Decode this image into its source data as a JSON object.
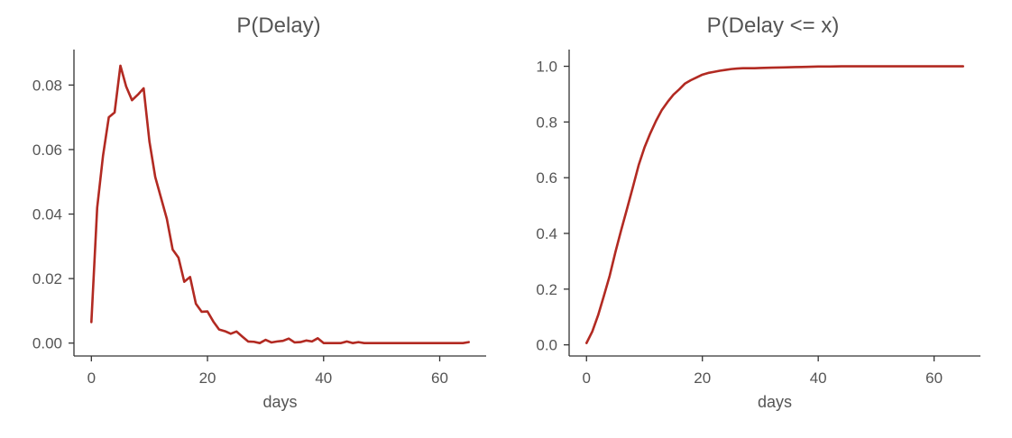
{
  "chart_data": [
    {
      "type": "line",
      "title": "P(Delay)",
      "xlabel": "days",
      "ylabel": "",
      "xlim": [
        -3,
        68
      ],
      "ylim": [
        -0.004,
        0.091
      ],
      "xticks": [
        0,
        20,
        40,
        60
      ],
      "xtick_labels": [
        "0",
        "20",
        "40",
        "60"
      ],
      "yticks": [
        0.0,
        0.02,
        0.04,
        0.06,
        0.08
      ],
      "ytick_labels": [
        "0.00",
        "0.02",
        "0.04",
        "0.06",
        "0.08"
      ],
      "grid": false,
      "color": "#b22a22",
      "x": [
        0,
        1,
        2,
        3,
        4,
        5,
        6,
        7,
        8,
        9,
        10,
        11,
        12,
        13,
        14,
        15,
        16,
        17,
        18,
        19,
        20,
        21,
        22,
        23,
        24,
        25,
        26,
        27,
        28,
        29,
        30,
        31,
        32,
        33,
        34,
        35,
        36,
        37,
        38,
        39,
        40,
        41,
        42,
        43,
        44,
        45,
        46,
        47,
        48,
        49,
        50,
        51,
        52,
        53,
        54,
        55,
        56,
        57,
        58,
        59,
        60,
        61,
        62,
        63,
        64,
        65
      ],
      "y": [
        0.0065,
        0.042,
        0.058,
        0.07,
        0.0715,
        0.086,
        0.0795,
        0.0753,
        0.077,
        0.079,
        0.0625,
        0.0515,
        0.045,
        0.0385,
        0.029,
        0.0265,
        0.019,
        0.0205,
        0.0122,
        0.0097,
        0.0098,
        0.0067,
        0.0042,
        0.0037,
        0.0029,
        0.0036,
        0.002,
        0.0005,
        0.0004,
        0.0,
        0.001,
        0.0002,
        0.0005,
        0.0007,
        0.0014,
        0.0002,
        0.0003,
        0.0008,
        0.0005,
        0.0015,
        0.0,
        0.0,
        0.0,
        0.0,
        0.0005,
        0.0,
        0.0003,
        0.0,
        0.0,
        0.0,
        0.0,
        0.0,
        0.0,
        0.0,
        0.0,
        0.0,
        0.0,
        0.0,
        0.0,
        0.0,
        0.0,
        0.0,
        0.0,
        0.0,
        0.0,
        0.0003
      ]
    },
    {
      "type": "line",
      "title": "P(Delay <= x)",
      "xlabel": "days",
      "ylabel": "",
      "xlim": [
        -3,
        68
      ],
      "ylim": [
        -0.04,
        1.06
      ],
      "xticks": [
        0,
        20,
        40,
        60
      ],
      "xtick_labels": [
        "0",
        "20",
        "40",
        "60"
      ],
      "yticks": [
        0.0,
        0.2,
        0.4,
        0.6,
        0.8,
        1.0
      ],
      "ytick_labels": [
        "0.0",
        "0.2",
        "0.4",
        "0.6",
        "0.8",
        "1.0"
      ],
      "grid": false,
      "color": "#b22a22",
      "x": [
        0,
        1,
        2,
        3,
        4,
        5,
        6,
        7,
        8,
        9,
        10,
        11,
        12,
        13,
        14,
        15,
        16,
        17,
        18,
        19,
        20,
        21,
        22,
        23,
        24,
        25,
        26,
        27,
        28,
        29,
        30,
        32,
        34,
        36,
        38,
        40,
        42,
        44,
        46,
        48,
        50,
        55,
        60,
        65
      ],
      "y": [
        0.0065,
        0.048,
        0.106,
        0.176,
        0.248,
        0.334,
        0.413,
        0.489,
        0.566,
        0.645,
        0.708,
        0.759,
        0.804,
        0.843,
        0.872,
        0.898,
        0.917,
        0.938,
        0.95,
        0.96,
        0.97,
        0.976,
        0.98,
        0.984,
        0.987,
        0.99,
        0.992,
        0.993,
        0.993,
        0.993,
        0.994,
        0.995,
        0.996,
        0.997,
        0.998,
        0.999,
        0.999,
        1.0,
        1.0,
        1.0,
        1.0,
        1.0,
        1.0,
        1.0
      ]
    }
  ]
}
